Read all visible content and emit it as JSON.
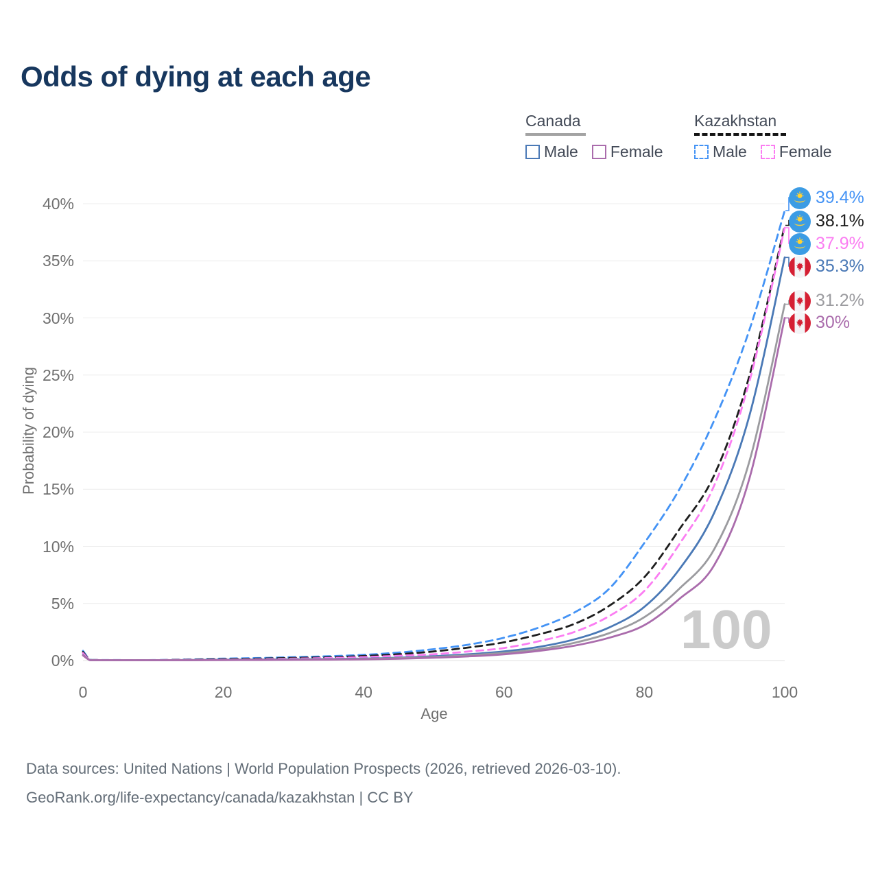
{
  "title": "Odds of dying at each age",
  "legend": {
    "canada": {
      "label": "Canada",
      "items": [
        {
          "label": "Male"
        },
        {
          "label": "Female"
        }
      ]
    },
    "kazakhstan": {
      "label": "Kazakhstan",
      "items": [
        {
          "label": "Male"
        },
        {
          "label": "Female"
        }
      ]
    }
  },
  "colors": {
    "canada_male": "#4a79b6",
    "canada_female": "#aa6cac",
    "canada_all": "#9b9b9f",
    "kazakhstan_male": "#4493f5",
    "kazakhstan_all": "#1e1e1e",
    "kazakhstan_female": "#fb7df2",
    "grid": "#ececec",
    "grid_zero": "#e0e0e0",
    "axis_text": "#6f6f6f",
    "title_text": "#17375e",
    "watermark_text": "#cbcbcb",
    "footer_text": "#646e78",
    "flag_kazakhstan_bg": "#3c9ce4",
    "flag_kazakhstan_gold": "#ffd234",
    "flag_canada_red": "#d51f33"
  },
  "watermark": "100",
  "footer": {
    "line1": "Data sources: United Nations | World Population Prospects (2026, retrieved 2026-03-10).",
    "line2": "GeoRank.org/life-expectancy/canada/kazakhstan | CC BY"
  },
  "chart_data": {
    "type": "line",
    "title": "Odds of dying at each age",
    "xlabel": "Age",
    "ylabel": "Probability of dying",
    "xlim": [
      0,
      100
    ],
    "ylim": [
      0,
      40
    ],
    "x_ticks": [
      0,
      20,
      40,
      60,
      80,
      100
    ],
    "y_ticks": [
      0,
      5,
      10,
      15,
      20,
      25,
      30,
      35,
      40
    ],
    "y_tick_suffix": "%",
    "grid": "horizontal",
    "legend_position": "top-right",
    "hover_age": "100",
    "ages": [
      0,
      1,
      2,
      5,
      10,
      15,
      20,
      25,
      30,
      35,
      40,
      45,
      50,
      55,
      60,
      65,
      70,
      75,
      80,
      85,
      90,
      95,
      100
    ],
    "series": [
      {
        "name": "Kazakhstan Male",
        "country": "Kazakhstan",
        "sex": "male",
        "style": "dashed",
        "color": "#4493f5",
        "end_label": "39.4%",
        "values": [
          0.85,
          0.07,
          0.05,
          0.04,
          0.04,
          0.1,
          0.17,
          0.22,
          0.3,
          0.38,
          0.5,
          0.7,
          1.0,
          1.4,
          2.0,
          2.9,
          4.2,
          6.3,
          10.3,
          15.0,
          21.1,
          29.0,
          39.4
        ]
      },
      {
        "name": "Kazakhstan Both sexes",
        "country": "Kazakhstan",
        "sex": "both",
        "style": "dashed",
        "color": "#1e1e1e",
        "end_label": "38.1%",
        "values": [
          0.75,
          0.06,
          0.04,
          0.03,
          0.03,
          0.08,
          0.13,
          0.17,
          0.23,
          0.29,
          0.4,
          0.56,
          0.8,
          1.15,
          1.6,
          2.3,
          3.2,
          4.8,
          7.3,
          11.5,
          16.3,
          25.0,
          38.1
        ]
      },
      {
        "name": "Kazakhstan Female",
        "country": "Kazakhstan",
        "sex": "female",
        "style": "dashed",
        "color": "#fb7df2",
        "end_label": "37.9%",
        "values": [
          0.65,
          0.05,
          0.04,
          0.03,
          0.03,
          0.06,
          0.09,
          0.12,
          0.17,
          0.22,
          0.3,
          0.42,
          0.55,
          0.8,
          1.1,
          1.7,
          2.5,
          3.9,
          6.1,
          10.2,
          15.4,
          24.5,
          37.9
        ]
      },
      {
        "name": "Canada Male",
        "country": "Canada",
        "sex": "male",
        "style": "solid",
        "color": "#4a79b6",
        "end_label": "35.3%",
        "values": [
          0.5,
          0.04,
          0.03,
          0.02,
          0.02,
          0.04,
          0.07,
          0.09,
          0.11,
          0.13,
          0.17,
          0.25,
          0.38,
          0.55,
          0.8,
          1.2,
          1.85,
          2.9,
          4.7,
          8.0,
          13.0,
          21.5,
          35.3
        ]
      },
      {
        "name": "Canada Both sexes",
        "country": "Canada",
        "sex": "both",
        "style": "solid",
        "color": "#9b9b9f",
        "end_label": "31.2%",
        "values": [
          0.48,
          0.04,
          0.03,
          0.02,
          0.02,
          0.04,
          0.06,
          0.07,
          0.09,
          0.11,
          0.14,
          0.21,
          0.31,
          0.46,
          0.67,
          1.0,
          1.55,
          2.4,
          3.8,
          6.3,
          9.8,
          17.5,
          31.2
        ]
      },
      {
        "name": "Canada Female",
        "country": "Canada",
        "sex": "female",
        "style": "solid",
        "color": "#aa6cac",
        "end_label": "30%",
        "values": [
          0.45,
          0.03,
          0.02,
          0.02,
          0.02,
          0.03,
          0.04,
          0.05,
          0.06,
          0.08,
          0.11,
          0.16,
          0.25,
          0.37,
          0.55,
          0.85,
          1.3,
          2.0,
          3.1,
          5.4,
          8.4,
          16.0,
          30.0
        ]
      }
    ]
  }
}
